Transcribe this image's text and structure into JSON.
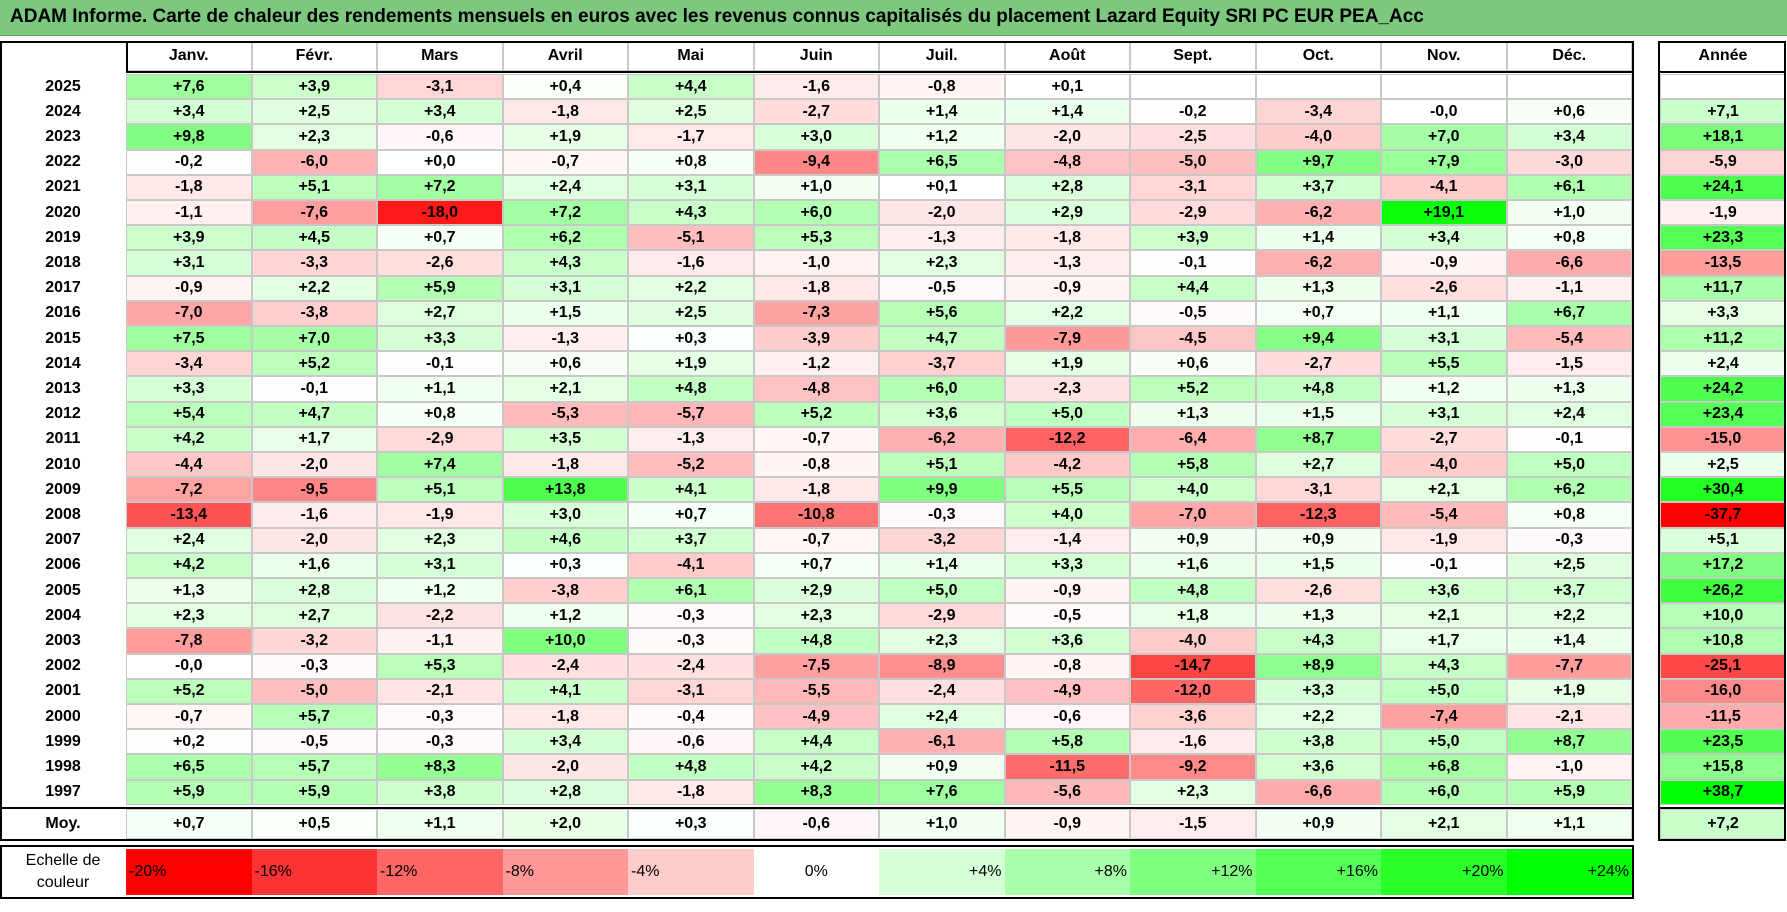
{
  "title": "ADAM Informe. Carte de chaleur des rendements mensuels en euros avec les revenus connus capitalisés du placement Lazard Equity SRI PC EUR PEA_Acc",
  "chart_data": {
    "type": "heatmap",
    "months": [
      "Janv.",
      "Févr.",
      "Mars",
      "Avril",
      "Mai",
      "Juin",
      "Juil.",
      "Août",
      "Sept.",
      "Oct.",
      "Nov.",
      "Déc."
    ],
    "year_header": "Année",
    "rows": [
      {
        "year": "2025",
        "values": [
          "+7,6",
          "+3,9",
          "-3,1",
          "+0,4",
          "+4,4",
          "-1,6",
          "-0,8",
          "+0,1",
          "",
          "",
          "",
          ""
        ],
        "annual": ""
      },
      {
        "year": "2024",
        "values": [
          "+3,4",
          "+2,5",
          "+3,4",
          "-1,8",
          "+2,5",
          "-2,7",
          "+1,4",
          "+1,4",
          "-0,2",
          "-3,4",
          "-0,0",
          "+0,6"
        ],
        "annual": "+7,1"
      },
      {
        "year": "2023",
        "values": [
          "+9,8",
          "+2,3",
          "-0,6",
          "+1,9",
          "-1,7",
          "+3,0",
          "+1,2",
          "-2,0",
          "-2,5",
          "-4,0",
          "+7,0",
          "+3,4"
        ],
        "annual": "+18,1"
      },
      {
        "year": "2022",
        "values": [
          "-0,2",
          "-6,0",
          "+0,0",
          "-0,7",
          "+0,8",
          "-9,4",
          "+6,5",
          "-4,8",
          "-5,0",
          "+9,7",
          "+7,9",
          "-3,0"
        ],
        "annual": "-5,9"
      },
      {
        "year": "2021",
        "values": [
          "-1,8",
          "+5,1",
          "+7,2",
          "+2,4",
          "+3,1",
          "+1,0",
          "+0,1",
          "+2,8",
          "-3,1",
          "+3,7",
          "-4,1",
          "+6,1"
        ],
        "annual": "+24,1"
      },
      {
        "year": "2020",
        "values": [
          "-1,1",
          "-7,6",
          "-18,0",
          "+7,2",
          "+4,3",
          "+6,0",
          "-2,0",
          "+2,9",
          "-2,9",
          "-6,2",
          "+19,1",
          "+1,0"
        ],
        "annual": "-1,9"
      },
      {
        "year": "2019",
        "values": [
          "+3,9",
          "+4,5",
          "+0,7",
          "+6,2",
          "-5,1",
          "+5,3",
          "-1,3",
          "-1,8",
          "+3,9",
          "+1,4",
          "+3,4",
          "+0,8"
        ],
        "annual": "+23,3"
      },
      {
        "year": "2018",
        "values": [
          "+3,1",
          "-3,3",
          "-2,6",
          "+4,3",
          "-1,6",
          "-1,0",
          "+2,3",
          "-1,3",
          "-0,1",
          "-6,2",
          "-0,9",
          "-6,6"
        ],
        "annual": "-13,5"
      },
      {
        "year": "2017",
        "values": [
          "-0,9",
          "+2,2",
          "+5,9",
          "+3,1",
          "+2,2",
          "-1,8",
          "-0,5",
          "-0,9",
          "+4,4",
          "+1,3",
          "-2,6",
          "-1,1"
        ],
        "annual": "+11,7"
      },
      {
        "year": "2016",
        "values": [
          "-7,0",
          "-3,8",
          "+2,7",
          "+1,5",
          "+2,5",
          "-7,3",
          "+5,6",
          "+2,2",
          "-0,5",
          "+0,7",
          "+1,1",
          "+6,7"
        ],
        "annual": "+3,3"
      },
      {
        "year": "2015",
        "values": [
          "+7,5",
          "+7,0",
          "+3,3",
          "-1,3",
          "+0,3",
          "-3,9",
          "+4,7",
          "-7,9",
          "-4,5",
          "+9,4",
          "+3,1",
          "-5,4"
        ],
        "annual": "+11,2"
      },
      {
        "year": "2014",
        "values": [
          "-3,4",
          "+5,2",
          "-0,1",
          "+0,6",
          "+1,9",
          "-1,2",
          "-3,7",
          "+1,9",
          "+0,6",
          "-2,7",
          "+5,5",
          "-1,5"
        ],
        "annual": "+2,4"
      },
      {
        "year": "2013",
        "values": [
          "+3,3",
          "-0,1",
          "+1,1",
          "+2,1",
          "+4,8",
          "-4,8",
          "+6,0",
          "-2,3",
          "+5,2",
          "+4,8",
          "+1,2",
          "+1,3"
        ],
        "annual": "+24,2"
      },
      {
        "year": "2012",
        "values": [
          "+5,4",
          "+4,7",
          "+0,8",
          "-5,3",
          "-5,7",
          "+5,2",
          "+3,6",
          "+5,0",
          "+1,3",
          "+1,5",
          "+3,1",
          "+2,4"
        ],
        "annual": "+23,4"
      },
      {
        "year": "2011",
        "values": [
          "+4,2",
          "+1,7",
          "-2,9",
          "+3,5",
          "-1,3",
          "-0,7",
          "-6,2",
          "-12,2",
          "-6,4",
          "+8,7",
          "-2,7",
          "-0,1"
        ],
        "annual": "-15,0"
      },
      {
        "year": "2010",
        "values": [
          "-4,4",
          "-2,0",
          "+7,4",
          "-1,8",
          "-5,2",
          "-0,8",
          "+5,1",
          "-4,2",
          "+5,8",
          "+2,7",
          "-4,0",
          "+5,0"
        ],
        "annual": "+2,5"
      },
      {
        "year": "2009",
        "values": [
          "-7,2",
          "-9,5",
          "+5,1",
          "+13,8",
          "+4,1",
          "-1,8",
          "+9,9",
          "+5,5",
          "+4,0",
          "-3,1",
          "+2,1",
          "+6,2"
        ],
        "annual": "+30,4"
      },
      {
        "year": "2008",
        "values": [
          "-13,4",
          "-1,6",
          "-1,9",
          "+3,0",
          "+0,7",
          "-10,8",
          "-0,3",
          "+4,0",
          "-7,0",
          "-12,3",
          "-5,4",
          "+0,8"
        ],
        "annual": "-37,7"
      },
      {
        "year": "2007",
        "values": [
          "+2,4",
          "-2,0",
          "+2,3",
          "+4,6",
          "+3,7",
          "-0,7",
          "-3,2",
          "-1,4",
          "+0,9",
          "+0,9",
          "-1,9",
          "-0,3"
        ],
        "annual": "+5,1"
      },
      {
        "year": "2006",
        "values": [
          "+4,2",
          "+1,6",
          "+3,1",
          "+0,3",
          "-4,1",
          "+0,7",
          "+1,4",
          "+3,3",
          "+1,6",
          "+1,5",
          "-0,1",
          "+2,5"
        ],
        "annual": "+17,2"
      },
      {
        "year": "2005",
        "values": [
          "+1,3",
          "+2,8",
          "+1,2",
          "-3,8",
          "+6,1",
          "+2,9",
          "+5,0",
          "-0,9",
          "+4,8",
          "-2,6",
          "+3,6",
          "+3,7"
        ],
        "annual": "+26,2"
      },
      {
        "year": "2004",
        "values": [
          "+2,3",
          "+2,7",
          "-2,2",
          "+1,2",
          "-0,3",
          "+2,3",
          "-2,9",
          "-0,5",
          "+1,8",
          "+1,3",
          "+2,1",
          "+2,2"
        ],
        "annual": "+10,0"
      },
      {
        "year": "2003",
        "values": [
          "-7,8",
          "-3,2",
          "-1,1",
          "+10,0",
          "-0,3",
          "+4,8",
          "+2,3",
          "+3,6",
          "-4,0",
          "+4,3",
          "+1,7",
          "+1,4"
        ],
        "annual": "+10,8"
      },
      {
        "year": "2002",
        "values": [
          "-0,0",
          "-0,3",
          "+5,3",
          "-2,4",
          "-2,4",
          "-7,5",
          "-8,9",
          "-0,8",
          "-14,7",
          "+8,9",
          "+4,3",
          "-7,7"
        ],
        "annual": "-25,1"
      },
      {
        "year": "2001",
        "values": [
          "+5,2",
          "-5,0",
          "-2,1",
          "+4,1",
          "-3,1",
          "-5,5",
          "-2,4",
          "-4,9",
          "-12,0",
          "+3,3",
          "+5,0",
          "+1,9"
        ],
        "annual": "-16,0"
      },
      {
        "year": "2000",
        "values": [
          "-0,7",
          "+5,7",
          "-0,3",
          "-1,8",
          "-0,4",
          "-4,9",
          "+2,4",
          "-0,6",
          "-3,6",
          "+2,2",
          "-7,4",
          "-2,1"
        ],
        "annual": "-11,5"
      },
      {
        "year": "1999",
        "values": [
          "+0,2",
          "-0,5",
          "-0,3",
          "+3,4",
          "-0,6",
          "+4,4",
          "-6,1",
          "+5,8",
          "-1,6",
          "+3,8",
          "+5,0",
          "+8,7"
        ],
        "annual": "+23,5"
      },
      {
        "year": "1998",
        "values": [
          "+6,5",
          "+5,7",
          "+8,3",
          "-2,0",
          "+4,8",
          "+4,2",
          "+0,9",
          "-11,5",
          "-9,2",
          "+3,6",
          "+6,8",
          "-1,0"
        ],
        "annual": "+15,8"
      },
      {
        "year": "1997",
        "values": [
          "+5,9",
          "+5,9",
          "+3,8",
          "+2,8",
          "-1,8",
          "+8,3",
          "+7,6",
          "-5,6",
          "+2,3",
          "-6,6",
          "+6,0",
          "+5,9"
        ],
        "annual": "+38,7"
      }
    ],
    "average": {
      "label": "Moy.",
      "values": [
        "+0,7",
        "+0,5",
        "+1,1",
        "+2,0",
        "+0,3",
        "-0,6",
        "+1,0",
        "-0,9",
        "-1,5",
        "+0,9",
        "+2,1",
        "+1,1"
      ],
      "annual": "+7,2"
    },
    "scale": {
      "label_line1": "Echelle de",
      "label_line2": "couleur",
      "steps": [
        {
          "label": "-20%",
          "value": -20
        },
        {
          "label": "-16%",
          "value": -16
        },
        {
          "label": "-12%",
          "value": -12
        },
        {
          "label": "-8%",
          "value": -8
        },
        {
          "label": "-4%",
          "value": -4
        },
        {
          "label": "0%",
          "value": 0
        },
        {
          "label": "+4%",
          "value": 4
        },
        {
          "label": "+8%",
          "value": 8
        },
        {
          "label": "+12%",
          "value": 12
        },
        {
          "label": "+16%",
          "value": 16
        },
        {
          "label": "+20%",
          "value": 20
        },
        {
          "label": "+24%",
          "value": 24
        }
      ]
    },
    "colors": {
      "negative_max": "#ff0000",
      "neutral": "#ffffff",
      "positive_max": "#00ff00",
      "title_bar": "#7dc87f"
    }
  }
}
